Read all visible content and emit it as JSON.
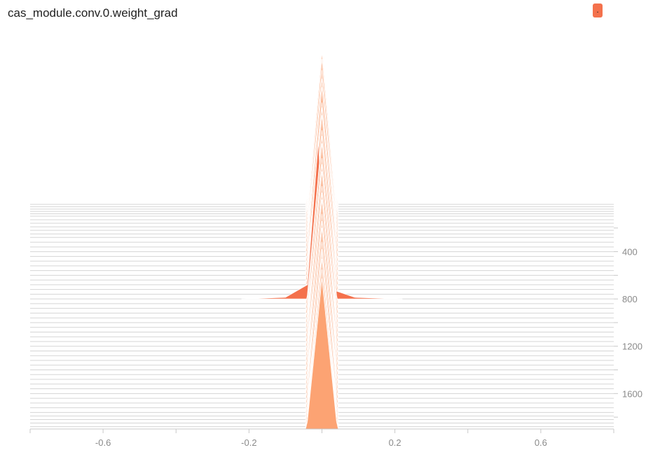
{
  "title": "cas_module.conv.0.weight_grad",
  "badge": ".",
  "colors": {
    "front": "#fca373",
    "highlight": "#f4714c",
    "ridge": "#fbb895",
    "axis": "#c8c8c8",
    "baseline": "#d5d5d5"
  },
  "chart_data": {
    "type": "histogram-offset",
    "x_ticks": [
      "-0.6",
      "-0.2",
      "0.2",
      "0.6"
    ],
    "y_ticks": [
      "400",
      "800",
      "1200",
      "1600"
    ],
    "xlim": [
      -0.8,
      0.8
    ],
    "steps_min": 0,
    "steps_max": 1900,
    "step_values": [
      0,
      20,
      40,
      60,
      80,
      100,
      130,
      160,
      190,
      220,
      250,
      280,
      320,
      360,
      400,
      440,
      480,
      520,
      560,
      600,
      640,
      680,
      720,
      760,
      800,
      840,
      880,
      920,
      960,
      1000,
      1040,
      1080,
      1120,
      1160,
      1200,
      1240,
      1280,
      1320,
      1360,
      1400,
      1440,
      1480,
      1520,
      1560,
      1600,
      1640,
      1680,
      1720,
      1760,
      1790,
      1820,
      1850,
      1880,
      1900
    ],
    "highlight_step": 800,
    "highlight_bins": [
      [
        -0.22,
        0.0
      ],
      [
        -0.1,
        0.01
      ],
      [
        -0.04,
        0.09
      ],
      [
        -0.01,
        1.0
      ],
      [
        0.01,
        0.18
      ],
      [
        0.04,
        0.05
      ],
      [
        0.09,
        0.01
      ],
      [
        0.22,
        0.0
      ]
    ],
    "typical_bins": [
      [
        -0.045,
        0.0
      ],
      [
        -0.04,
        0.05
      ],
      [
        0.0,
        1.0
      ],
      [
        0.04,
        0.05
      ],
      [
        0.045,
        0.0
      ]
    ]
  }
}
